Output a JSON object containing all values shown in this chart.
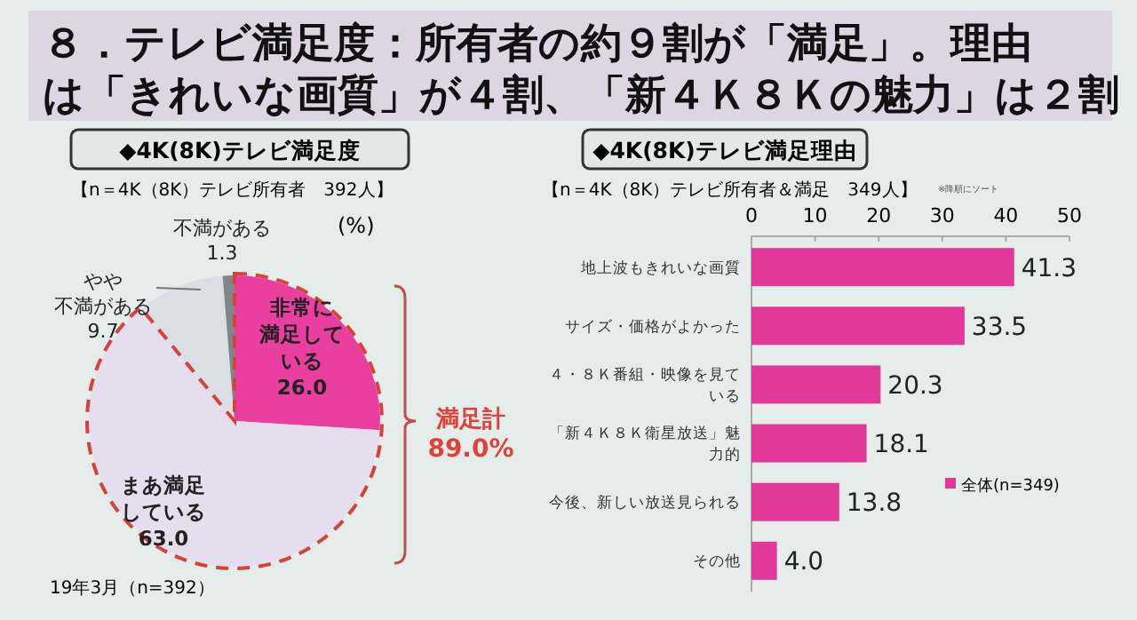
{
  "chart_data": [
    {
      "type": "other",
      "title": "８．テレビ満足度：所有者の約９割が「満足」。理由は「きれいな画質」が４割、「新４Ｋ８Ｋの魅力」は２割"
    },
    {
      "type": "pie",
      "title": "◆4K(8K)テレビ満足度",
      "subtitle": "【n＝4K（8K）テレビ所有者　392人】",
      "categories": [
        "非常に満足している",
        "まあ満足している",
        "やや不満がある",
        "不満がある"
      ],
      "values": [
        26.0,
        63.0,
        9.7,
        1.3
      ],
      "colors": [
        "#ea3f9e",
        "#e4deef",
        "#d9dfe2",
        "#808586"
      ],
      "value_labels": [
        "26.0",
        "63.0",
        "9.7",
        "1.3"
      ],
      "annotations": [
        "(%)",
        "満足計",
        "89.0%",
        "19年3月（n=392）"
      ]
    },
    {
      "type": "bar",
      "orientation": "horizontal",
      "title": "◆4K(8K)テレビ満足理由",
      "subtitle": "【n＝4K（8K）テレビ所有者＆満足　349人】",
      "categories": [
        "地上波もきれいな画質",
        "サイズ・価格がよかった",
        "４・８Ｋ番組・映像を見ている",
        "「新４Ｋ８Ｋ衛星放送」魅力的",
        "今後、新しい放送見られる",
        "その他"
      ],
      "series": [
        {
          "name": "全体(n=349)",
          "color": "#e2389a",
          "values": [
            41.3,
            33.5,
            20.3,
            18.1,
            13.8,
            4.0
          ]
        }
      ],
      "value_labels": [
        "41.3",
        "33.5",
        "20.3",
        "18.1",
        "13.8",
        "4.0"
      ],
      "xlim": [
        0,
        50
      ],
      "xticks": [
        0,
        10,
        20,
        30,
        40,
        50
      ],
      "legend": "right",
      "annotations": [
        "※降順にソート"
      ]
    }
  ]
}
